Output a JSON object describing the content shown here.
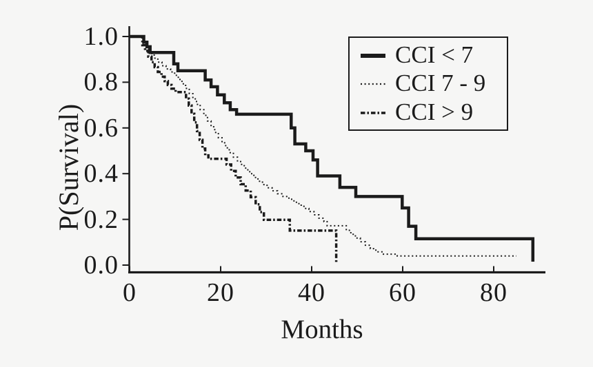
{
  "figure": {
    "background": "#f6f6f5",
    "ink": "#1b1b1b"
  },
  "chart_data": {
    "type": "line",
    "subtype": "kaplan_meier_step",
    "title": "",
    "xlabel": "Months",
    "ylabel": "P(Survival)",
    "xlim": [
      0,
      91
    ],
    "ylim": [
      0.0,
      1.0
    ],
    "grid": false,
    "legend_position": "top-right",
    "x_tick_values": [
      0,
      20,
      40,
      60,
      80
    ],
    "x_tick_labels": [
      "0",
      "20",
      "40",
      "60",
      "80"
    ],
    "y_tick_values": [
      1.0,
      0.8,
      0.6,
      0.4,
      0.2,
      0.0
    ],
    "y_tick_labels": [
      "1.0",
      "0.8",
      "0.6",
      "0.4",
      "0.2",
      "0.0"
    ],
    "series": [
      {
        "name": "CCI < 7",
        "style": "solid",
        "end_month": 88.6,
        "points": [
          [
            0,
            1.0
          ],
          [
            3.1,
            0.975
          ],
          [
            3.8,
            0.955
          ],
          [
            4.5,
            0.93
          ],
          [
            9.7,
            0.88
          ],
          [
            10.6,
            0.85
          ],
          [
            16.6,
            0.81
          ],
          [
            17.9,
            0.78
          ],
          [
            19.3,
            0.745
          ],
          [
            20.8,
            0.71
          ],
          [
            22.1,
            0.68
          ],
          [
            23.5,
            0.66
          ],
          [
            35.5,
            0.6
          ],
          [
            36.3,
            0.53
          ],
          [
            38.7,
            0.5
          ],
          [
            40.3,
            0.46
          ],
          [
            41.3,
            0.39
          ],
          [
            46.2,
            0.34
          ],
          [
            49.7,
            0.3
          ],
          [
            59.9,
            0.25
          ],
          [
            61.3,
            0.17
          ],
          [
            62.9,
            0.115
          ],
          [
            88.6,
            0.015
          ]
        ]
      },
      {
        "name": "CCI 7 - 9",
        "style": "dotted",
        "end_month": 85,
        "points": [
          [
            0,
            1.0
          ],
          [
            3,
            0.97
          ],
          [
            3.8,
            0.945
          ],
          [
            4.6,
            0.925
          ],
          [
            5.4,
            0.905
          ],
          [
            6.2,
            0.888
          ],
          [
            7.1,
            0.872
          ],
          [
            8,
            0.858
          ],
          [
            9,
            0.845
          ],
          [
            9.9,
            0.83
          ],
          [
            10.7,
            0.812
          ],
          [
            11.5,
            0.793
          ],
          [
            12.3,
            0.773
          ],
          [
            13.1,
            0.75
          ],
          [
            13.9,
            0.727
          ],
          [
            14.7,
            0.703
          ],
          [
            15.5,
            0.68
          ],
          [
            16.3,
            0.655
          ],
          [
            17.1,
            0.63
          ],
          [
            17.9,
            0.605
          ],
          [
            18.7,
            0.58
          ],
          [
            19.5,
            0.557
          ],
          [
            20.3,
            0.535
          ],
          [
            21.1,
            0.513
          ],
          [
            21.9,
            0.492
          ],
          [
            22.8,
            0.472
          ],
          [
            23.7,
            0.453
          ],
          [
            24.6,
            0.435
          ],
          [
            25.5,
            0.417
          ],
          [
            26.4,
            0.4
          ],
          [
            27.3,
            0.383
          ],
          [
            28.2,
            0.367
          ],
          [
            29.2,
            0.352
          ],
          [
            30.2,
            0.338
          ],
          [
            31.3,
            0.325
          ],
          [
            32.5,
            0.312
          ],
          [
            33.7,
            0.3
          ],
          [
            35,
            0.288
          ],
          [
            36.1,
            0.275
          ],
          [
            37.2,
            0.262
          ],
          [
            38.3,
            0.248
          ],
          [
            39.4,
            0.234
          ],
          [
            40.5,
            0.22
          ],
          [
            41.6,
            0.205
          ],
          [
            42.7,
            0.19
          ],
          [
            43.4,
            0.172
          ],
          [
            47.6,
            0.152
          ],
          [
            48.6,
            0.135
          ],
          [
            49.6,
            0.118
          ],
          [
            50.7,
            0.102
          ],
          [
            51.8,
            0.087
          ],
          [
            52.9,
            0.072
          ],
          [
            54.1,
            0.058
          ],
          [
            55.6,
            0.048
          ],
          [
            58.8,
            0.04
          ]
        ]
      },
      {
        "name": "CCI > 9",
        "style": "dashdot",
        "end_month": 45.4,
        "points": [
          [
            0,
            1.0
          ],
          [
            2.8,
            0.962
          ],
          [
            3.4,
            0.937
          ],
          [
            4.1,
            0.912
          ],
          [
            4.8,
            0.888
          ],
          [
            5.5,
            0.866
          ],
          [
            6.2,
            0.845
          ],
          [
            7,
            0.824
          ],
          [
            7.7,
            0.805
          ],
          [
            8.4,
            0.788
          ],
          [
            9.2,
            0.772
          ],
          [
            10.1,
            0.757
          ],
          [
            12.4,
            0.728
          ],
          [
            13,
            0.698
          ],
          [
            13.6,
            0.662
          ],
          [
            14.2,
            0.624
          ],
          [
            14.8,
            0.586
          ],
          [
            15.4,
            0.548
          ],
          [
            16,
            0.51
          ],
          [
            16.6,
            0.48
          ],
          [
            17.3,
            0.465
          ],
          [
            21.3,
            0.44
          ],
          [
            22.3,
            0.412
          ],
          [
            23.3,
            0.383
          ],
          [
            24.4,
            0.354
          ],
          [
            25.5,
            0.326
          ],
          [
            26.6,
            0.297
          ],
          [
            27.7,
            0.266
          ],
          [
            28.6,
            0.232
          ],
          [
            29.5,
            0.198
          ],
          [
            35.2,
            0.151
          ],
          [
            45.4,
            0.008
          ]
        ]
      }
    ]
  }
}
